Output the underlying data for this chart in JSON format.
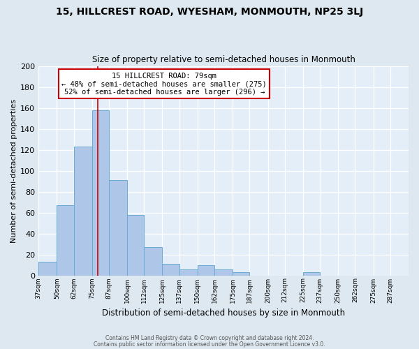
{
  "title": "15, HILLCREST ROAD, WYESHAM, MONMOUTH, NP25 3LJ",
  "subtitle": "Size of property relative to semi-detached houses in Monmouth",
  "xlabel": "Distribution of semi-detached houses by size in Monmouth",
  "ylabel": "Number of semi-detached properties",
  "bin_labels": [
    "37sqm",
    "50sqm",
    "62sqm",
    "75sqm",
    "87sqm",
    "100sqm",
    "112sqm",
    "125sqm",
    "137sqm",
    "150sqm",
    "162sqm",
    "175sqm",
    "187sqm",
    "200sqm",
    "212sqm",
    "225sqm",
    "237sqm",
    "250sqm",
    "262sqm",
    "275sqm",
    "287sqm"
  ],
  "bar_values": [
    13,
    67,
    123,
    158,
    91,
    58,
    27,
    11,
    6,
    10,
    6,
    3,
    0,
    0,
    0,
    3,
    0,
    0,
    0,
    0,
    0
  ],
  "bar_color": "#aec6e8",
  "bar_edge_color": "#6aaad4",
  "vline_x": 79,
  "vline_color": "#cc0000",
  "ylim": [
    0,
    200
  ],
  "yticks": [
    0,
    20,
    40,
    60,
    80,
    100,
    120,
    140,
    160,
    180,
    200
  ],
  "annotation_title": "15 HILLCREST ROAD: 79sqm",
  "annotation_line1": "← 48% of semi-detached houses are smaller (275)",
  "annotation_line2": "52% of semi-detached houses are larger (296) →",
  "annotation_box_color": "#ffffff",
  "annotation_box_edge": "#cc0000",
  "footer1": "Contains HM Land Registry data © Crown copyright and database right 2024.",
  "footer2": "Contains public sector information licensed under the Open Government Licence v3.0.",
  "bg_color": "#dde8f0",
  "plot_bg_color": "#e4eef8",
  "bin_edges": [
    37,
    50,
    62,
    75,
    87,
    100,
    112,
    125,
    137,
    150,
    162,
    175,
    187,
    200,
    212,
    225,
    237,
    250,
    262,
    275,
    287,
    300
  ]
}
